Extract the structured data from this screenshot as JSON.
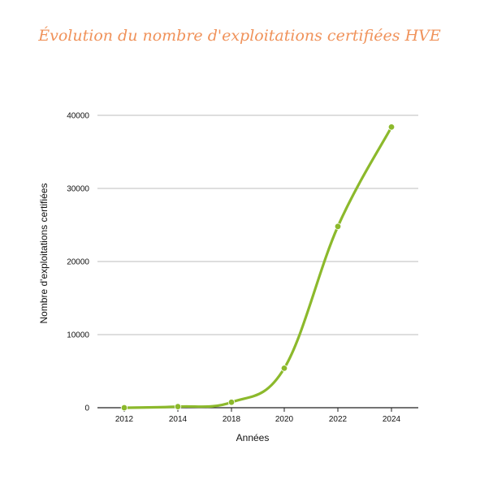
{
  "chart_data": {
    "type": "line",
    "title": "Évolution du nombre d'exploitations certifiées HVE",
    "xlabel": "Années",
    "ylabel": "Nombre d'exploitations certifiées",
    "x": [
      2012,
      2014,
      2018,
      2020,
      2022,
      2024
    ],
    "series": [
      {
        "values": [
          0,
          150,
          750,
          5400,
          24800,
          38400
        ]
      }
    ],
    "ylim": [
      0,
      40000
    ],
    "yticks": [
      "0",
      "10000",
      "20000",
      "30000",
      "40000"
    ],
    "xticks": [
      "2012",
      "2014",
      "2018",
      "2020",
      "2022",
      "2024"
    ],
    "grid": true,
    "legend": "none",
    "colors": {
      "title": "#f0925a",
      "line": "#8cb92c",
      "grid": "#bdbdbd",
      "axis": "#222222"
    }
  }
}
